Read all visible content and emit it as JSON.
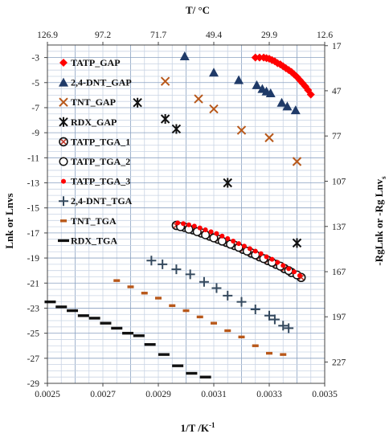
{
  "chart_data": {
    "type": "scatter",
    "title": "",
    "xlabel": "1/T /K",
    "xlabel_sup": "-1",
    "top_xlabel": "T/ °C",
    "ylabel": "Lnk or Lnvs",
    "right_ylabel": "-RgLnk or -Rg Lnv",
    "right_ylabel_sub": "s",
    "xlim": [
      0.0025,
      0.0035
    ],
    "ylim": [
      -29,
      -2
    ],
    "x_ticks": [
      "0.0025",
      "0.0027",
      "0.0029",
      "0.0031",
      "0.0033",
      "0.0035"
    ],
    "y_ticks": [
      "-3",
      "-5",
      "-7",
      "-9",
      "-11",
      "-13",
      "-15",
      "-17",
      "-19",
      "-21",
      "-23",
      "-25",
      "-27",
      "-29"
    ],
    "top_ticks": [
      {
        "x": 0.0025,
        "label": "126.9"
      },
      {
        "x": 0.0027,
        "label": "97.2"
      },
      {
        "x": 0.0029,
        "label": "71.7"
      },
      {
        "x": 0.0031,
        "label": "49.4"
      },
      {
        "x": 0.0033,
        "label": "29.9"
      },
      {
        "x": 0.0035,
        "label": "12.6"
      }
    ],
    "right_ticks": [
      {
        "y": -2.05,
        "label": "17"
      },
      {
        "y": -5.65,
        "label": "47"
      },
      {
        "y": -9.26,
        "label": "77"
      },
      {
        "y": -12.87,
        "label": "107"
      },
      {
        "y": -16.48,
        "label": "137"
      },
      {
        "y": -20.09,
        "label": "167"
      },
      {
        "y": -23.69,
        "label": "197"
      },
      {
        "y": -27.3,
        "label": "227"
      }
    ],
    "grid": true,
    "legend_position": "left",
    "series": [
      {
        "name": "TATP_GAP",
        "marker": "diamond",
        "color": "#ff0000",
        "x": [
          0.00325,
          0.003265,
          0.00328,
          0.00329,
          0.0033,
          0.00331,
          0.00332,
          0.00333,
          0.00334,
          0.00335,
          0.00336,
          0.00337,
          0.00338,
          0.00339,
          0.0034,
          0.00341,
          0.00342,
          0.00343,
          0.00344,
          0.00345
        ],
        "y": [
          -3,
          -3,
          -3,
          -3.05,
          -3.1,
          -3.2,
          -3.3,
          -3.45,
          -3.55,
          -3.7,
          -3.85,
          -4.0,
          -4.15,
          -4.35,
          -4.55,
          -4.8,
          -5.05,
          -5.3,
          -5.6,
          -5.95
        ]
      },
      {
        "name": "2,4-DNT_GAP",
        "marker": "triangle",
        "color": "#1f3a68",
        "x": [
          0.002995,
          0.0031,
          0.00319,
          0.003255,
          0.003275,
          0.00329,
          0.003305,
          0.003345,
          0.003365,
          0.003395
        ],
        "y": [
          -2.9,
          -4.2,
          -4.8,
          -5.2,
          -5.5,
          -5.7,
          -5.85,
          -6.6,
          -6.9,
          -7.2
        ]
      },
      {
        "name": "TNT_GAP",
        "marker": "x",
        "color": "#b8581a",
        "x": [
          0.002925,
          0.003045,
          0.0031,
          0.0032,
          0.0033,
          0.0034
        ],
        "y": [
          -4.9,
          -6.3,
          -7.1,
          -8.8,
          -9.4,
          -11.3
        ]
      },
      {
        "name": "RDX_GAP",
        "marker": "star",
        "color": "#111111",
        "x": [
          0.002825,
          0.002925,
          0.002965,
          0.00315,
          0.0034
        ],
        "y": [
          -6.6,
          -7.9,
          -8.7,
          -13.0,
          -17.8
        ]
      },
      {
        "name": "TATP_TGA_1",
        "marker": "ring-x",
        "color": "#c0392b",
        "x": [
          0.002965,
          0.002995,
          0.003025,
          0.003055,
          0.003085,
          0.003115,
          0.003145,
          0.003175,
          0.003205,
          0.003235,
          0.003265,
          0.003295,
          0.003325,
          0.003355,
          0.00338,
          0.003415
        ],
        "y": [
          -16.4,
          -16.55,
          -16.75,
          -17.0,
          -17.25,
          -17.5,
          -17.75,
          -18.0,
          -18.3,
          -18.6,
          -18.9,
          -19.2,
          -19.5,
          -19.85,
          -20.15,
          -20.55
        ]
      },
      {
        "name": "TATP_TGA_2",
        "marker": "ring",
        "color": "#111111",
        "x": [
          0.00298,
          0.00301,
          0.00304,
          0.00307,
          0.0031,
          0.00313,
          0.00316,
          0.00319,
          0.00322,
          0.00325,
          0.00328,
          0.00331,
          0.00334,
          0.00337,
          0.0034
        ],
        "y": [
          -16.5,
          -16.7,
          -16.9,
          -17.15,
          -17.4,
          -17.65,
          -17.9,
          -18.15,
          -18.45,
          -18.75,
          -19.05,
          -19.35,
          -19.65,
          -20.0,
          -20.35
        ]
      },
      {
        "name": "TATP_TGA_3",
        "marker": "dot",
        "color": "#ff0000",
        "x": [
          0.00297,
          0.00299,
          0.00301,
          0.00303,
          0.00305,
          0.00307,
          0.00309,
          0.00311,
          0.00313,
          0.00315,
          0.00317,
          0.00319,
          0.00321,
          0.00323,
          0.00325,
          0.00327,
          0.00329,
          0.00331,
          0.00333,
          0.00335,
          0.00337,
          0.00339,
          0.00341
        ],
        "y": [
          -16.2,
          -16.25,
          -16.35,
          -16.45,
          -16.6,
          -16.75,
          -16.9,
          -17.05,
          -17.25,
          -17.45,
          -17.65,
          -17.85,
          -18.05,
          -18.25,
          -18.45,
          -18.65,
          -18.9,
          -19.1,
          -19.35,
          -19.6,
          -19.85,
          -20.1,
          -20.4
        ]
      },
      {
        "name": "2,4-DNT_TGA",
        "marker": "plus",
        "color": "#34495e",
        "x": [
          0.002875,
          0.002915,
          0.002965,
          0.003015,
          0.003065,
          0.00311,
          0.00315,
          0.0032,
          0.00325,
          0.0033,
          0.00332,
          0.00335,
          0.00337
        ],
        "y": [
          -19.2,
          -19.5,
          -19.9,
          -20.3,
          -20.9,
          -21.4,
          -22.0,
          -22.5,
          -23.1,
          -23.6,
          -23.9,
          -24.4,
          -24.6
        ]
      },
      {
        "name": "TNT_TGA",
        "marker": "dash",
        "color": "#b8581a",
        "x": [
          0.00275,
          0.0028,
          0.00285,
          0.0029,
          0.00295,
          0.003,
          0.00305,
          0.0031,
          0.00315,
          0.0032,
          0.00325,
          0.0033,
          0.00335
        ],
        "y": [
          -20.8,
          -21.3,
          -21.8,
          -22.2,
          -22.8,
          -23.2,
          -23.7,
          -24.2,
          -24.8,
          -25.3,
          -26.0,
          -26.6,
          -26.7
        ]
      },
      {
        "name": "RDX_TGA",
        "marker": "bar",
        "color": "#111111",
        "x": [
          0.00251,
          0.00255,
          0.00259,
          0.00263,
          0.00267,
          0.00271,
          0.00275,
          0.00279,
          0.00283,
          0.00287,
          0.00292,
          0.00297,
          0.00302,
          0.00307
        ],
        "y": [
          -22.5,
          -22.9,
          -23.2,
          -23.6,
          -23.8,
          -24.2,
          -24.6,
          -25.0,
          -25.2,
          -25.9,
          -26.7,
          -27.6,
          -28.2,
          -28.5
        ]
      }
    ]
  }
}
